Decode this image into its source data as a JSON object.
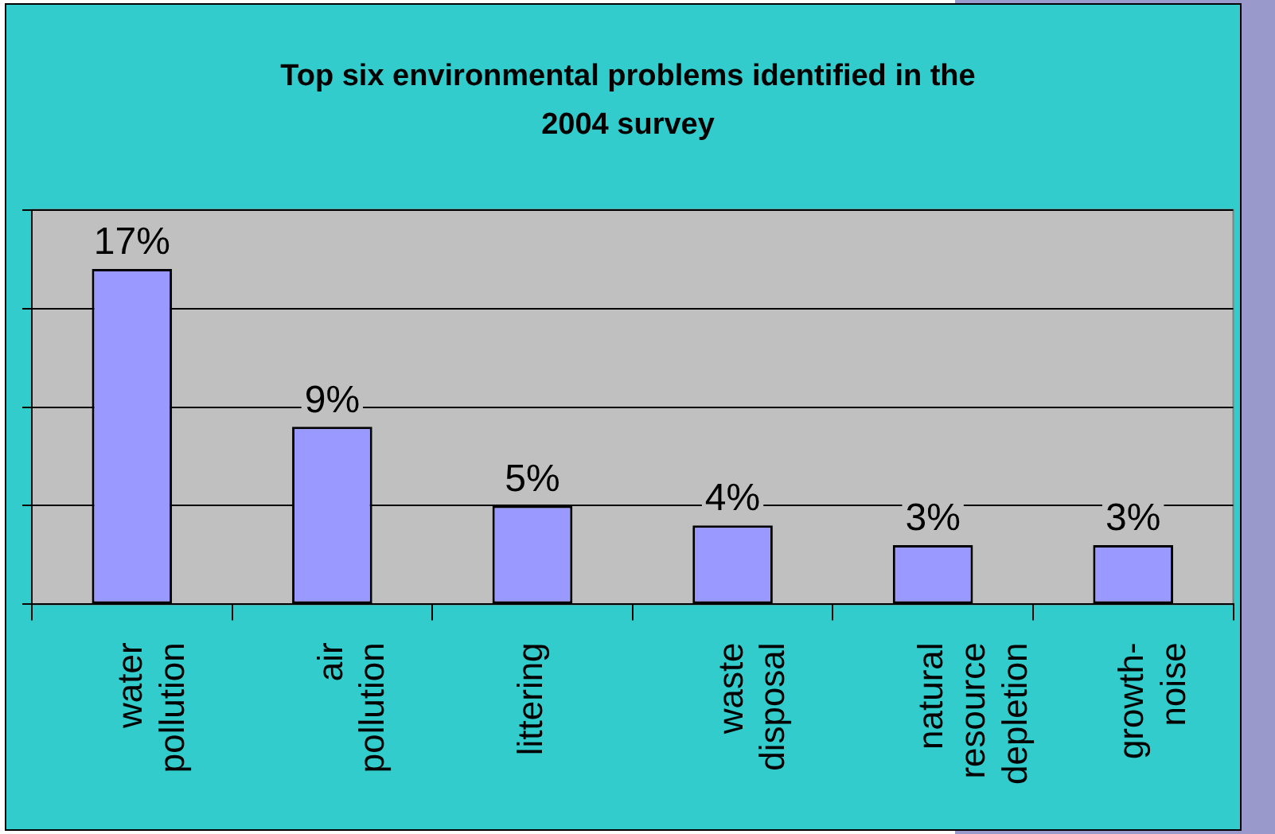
{
  "chart_data": {
    "type": "bar",
    "title": "Top six environmental problems identified in the 2004 survey",
    "categories": [
      "water pollution",
      "air pollution",
      "littering",
      "waste disposal",
      "natural resource depletion",
      "growth-noise"
    ],
    "values": [
      17,
      9,
      5,
      4,
      3,
      3
    ],
    "color": "#9999ff",
    "value_labels": [
      "17%",
      "9%",
      "5%",
      "4%",
      "3%",
      "3%"
    ],
    "ylim": [
      0,
      20
    ],
    "grid": "y",
    "legend": false,
    "tick_labels": "x"
  }
}
